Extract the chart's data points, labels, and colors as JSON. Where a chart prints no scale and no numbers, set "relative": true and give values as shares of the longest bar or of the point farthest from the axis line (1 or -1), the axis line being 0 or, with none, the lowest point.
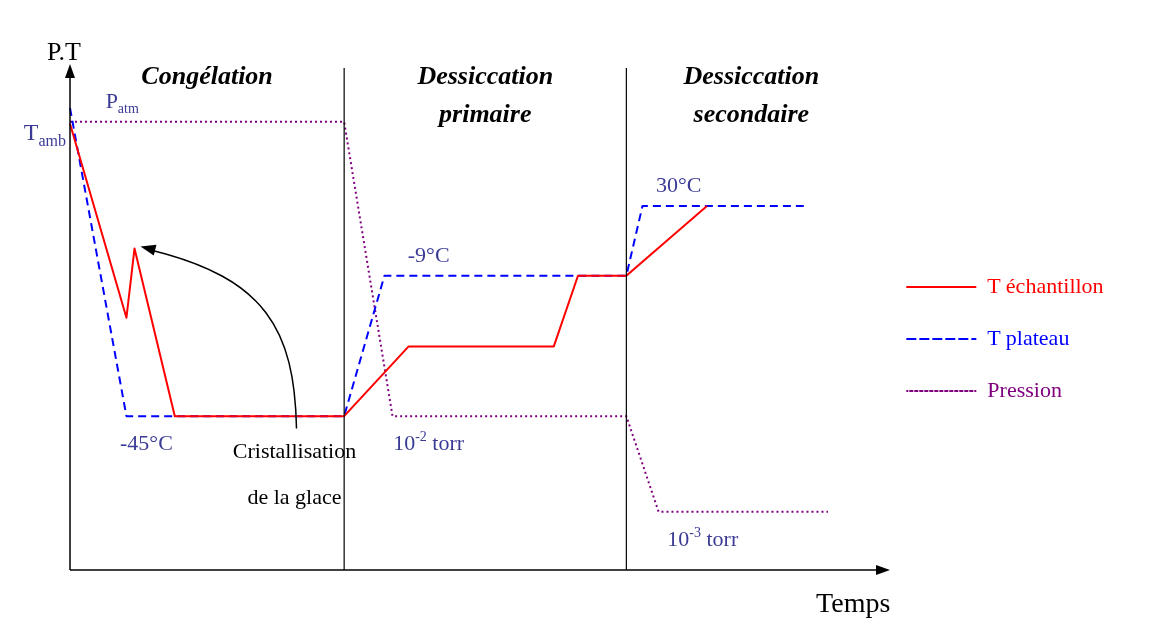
{
  "chart_data": {
    "type": "line",
    "relative": true,
    "xlabel": "Temps",
    "ylabel": "P.T",
    "legend": "right",
    "categories": [
      null,
      null,
      null,
      null,
      null,
      null,
      null,
      null,
      null,
      null,
      null,
      null,
      null,
      null,
      null,
      null,
      null,
      null,
      null,
      null,
      null,
      null,
      null,
      null,
      null,
      null,
      null,
      null,
      null,
      null,
      null,
      null,
      null,
      null,
      null,
      null,
      null,
      null,
      null,
      null,
      null,
      null,
      null,
      null,
      null,
      null,
      null,
      null,
      null,
      null,
      null,
      null,
      null,
      null,
      null,
      null,
      null,
      null,
      null,
      null,
      null,
      null,
      null,
      null,
      null,
      null,
      null,
      null,
      null,
      null,
      null,
      null,
      null,
      null,
      null,
      null,
      null,
      null,
      null,
      null,
      null,
      null,
      null,
      null,
      null,
      null,
      null,
      null,
      null,
      null,
      null,
      null,
      null,
      null,
      null,
      null,
      null,
      null,
      null,
      null,
      null
    ],
    "series": [
      {
        "name": "T échantillon",
        "color": "#ff0000",
        "line_style": "solid",
        "values": [
          0.966,
          null,
          null,
          null,
          null,
          null,
          null,
          0.546,
          0.696,
          null,
          null,
          null,
          null,
          0.333,
          null,
          null,
          null,
          null,
          null,
          null,
          null,
          null,
          null,
          null,
          null,
          null,
          null,
          null,
          null,
          null,
          null,
          null,
          null,
          null,
          0.333,
          null,
          null,
          null,
          null,
          null,
          null,
          null,
          0.484,
          null,
          null,
          null,
          null,
          null,
          null,
          null,
          null,
          null,
          null,
          null,
          null,
          null,
          null,
          null,
          null,
          null,
          0.484,
          null,
          null,
          0.637,
          null,
          null,
          null,
          null,
          null,
          0.637,
          null,
          null,
          null,
          null,
          null,
          null,
          null,
          null,
          null,
          0.788,
          null,
          null,
          null,
          null,
          null,
          null,
          null,
          null,
          null,
          null,
          null,
          null,
          null,
          null,
          null,
          null,
          null,
          null,
          null,
          null,
          null
        ]
      },
      {
        "name": "T plateau",
        "color": "#0000ff",
        "line_style": "dashed",
        "values": [
          1.0,
          null,
          null,
          null,
          null,
          null,
          null,
          0.333,
          null,
          null,
          null,
          null,
          null,
          null,
          null,
          null,
          null,
          null,
          null,
          null,
          null,
          null,
          null,
          null,
          null,
          null,
          null,
          null,
          null,
          null,
          null,
          null,
          null,
          null,
          0.333,
          null,
          null,
          null,
          null,
          0.637,
          null,
          null,
          null,
          null,
          null,
          null,
          null,
          null,
          null,
          null,
          null,
          null,
          null,
          null,
          null,
          null,
          null,
          null,
          null,
          null,
          null,
          null,
          null,
          null,
          null,
          null,
          null,
          null,
          null,
          0.637,
          null,
          0.788,
          null,
          null,
          null,
          null,
          null,
          null,
          null,
          null,
          null,
          null,
          null,
          null,
          null,
          null,
          null,
          null,
          null,
          null,
          null,
          0.788,
          null,
          null,
          null,
          null,
          null,
          null,
          null,
          null,
          null
        ]
      },
      {
        "name": "Pression",
        "color": "#800080",
        "line_style": "dotted",
        "values": [
          0.97,
          null,
          null,
          null,
          null,
          null,
          null,
          null,
          null,
          null,
          null,
          null,
          null,
          null,
          null,
          null,
          null,
          null,
          null,
          null,
          null,
          null,
          null,
          null,
          null,
          null,
          null,
          null,
          null,
          null,
          null,
          null,
          null,
          null,
          0.97,
          null,
          null,
          null,
          null,
          null,
          0.333,
          null,
          null,
          null,
          null,
          null,
          null,
          null,
          null,
          null,
          null,
          null,
          null,
          null,
          null,
          null,
          null,
          null,
          null,
          null,
          null,
          null,
          null,
          null,
          null,
          null,
          null,
          null,
          null,
          0.333,
          null,
          null,
          null,
          0.126,
          null,
          null,
          null,
          null,
          null,
          null,
          null,
          null,
          null,
          null,
          null,
          null,
          null,
          null,
          null,
          null,
          null,
          null,
          null,
          null,
          0.126,
          null,
          null,
          null,
          null,
          null,
          null
        ]
      }
    ],
    "annotations": [
      "T$_{amb}$",
      {
        "text": "P$_{atm}$",
        "y": 0.97
      },
      {
        "text": "-45°C",
        "y": 0.333
      },
      {
        "text": "-9°C",
        "y": 0.637
      },
      {
        "text": "30°C",
        "y": 0.788
      },
      {
        "text": "10$^{-2}$ torr",
        "y": 0.333
      },
      {
        "text": "10$^{-3}$ torr",
        "y": 0.126
      },
      "Cristallisation de la glace",
      "Congélation",
      "Dessiccation primaire",
      "Dessiccation secondaire"
    ]
  }
}
